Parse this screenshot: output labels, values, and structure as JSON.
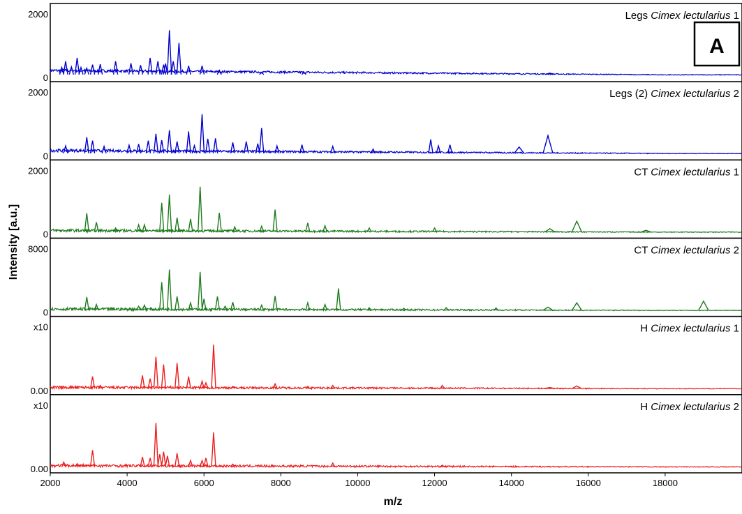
{
  "badge": "A",
  "chart_data": {
    "type": "line",
    "xlabel": "m/z",
    "ylabel": "Intensity [a.u.]",
    "xlim": [
      2000,
      20000
    ],
    "x_ticks": [
      "2000",
      "4000",
      "6000",
      "8000",
      "10000",
      "12000",
      "14000",
      "16000",
      "18000"
    ],
    "x_tick_values": [
      2000,
      4000,
      6000,
      8000,
      10000,
      12000,
      14000,
      16000,
      18000
    ],
    "panels": [
      {
        "prefix": "Legs",
        "species": "Cimex lectularius",
        "suffix": "1",
        "color": "#0000cc",
        "y_top_label": "2000",
        "y_bottom_label": "0",
        "ylim": [
          0,
          2500
        ],
        "baseline": 180,
        "peaks": [
          [
            2300,
            380
          ],
          [
            2400,
            650
          ],
          [
            2550,
            400
          ],
          [
            2700,
            800
          ],
          [
            2800,
            380
          ],
          [
            2950,
            350
          ],
          [
            3100,
            500
          ],
          [
            3300,
            520
          ],
          [
            3700,
            650
          ],
          [
            4100,
            560
          ],
          [
            4350,
            480
          ],
          [
            4600,
            800
          ],
          [
            4800,
            650
          ],
          [
            4950,
            500
          ],
          [
            5000,
            550
          ],
          [
            5100,
            2000
          ],
          [
            5200,
            650
          ],
          [
            5350,
            1450
          ],
          [
            5600,
            450
          ],
          [
            5950,
            450
          ],
          [
            6400,
            250
          ],
          [
            7500,
            170
          ],
          [
            8600,
            170
          ],
          [
            15000,
            130
          ]
        ]
      },
      {
        "prefix": "Legs (2)",
        "species": "Cimex lectularius",
        "suffix": "2",
        "color": "#0000cc",
        "y_top_label": "2000",
        "y_bottom_label": "0",
        "ylim": [
          0,
          2500
        ],
        "baseline": 120,
        "peaks": [
          [
            2400,
            370
          ],
          [
            2950,
            750
          ],
          [
            3100,
            600
          ],
          [
            3400,
            350
          ],
          [
            4050,
            400
          ],
          [
            4300,
            450
          ],
          [
            4550,
            600
          ],
          [
            4750,
            900
          ],
          [
            4900,
            620
          ],
          [
            5100,
            1050
          ],
          [
            5300,
            560
          ],
          [
            5600,
            1000
          ],
          [
            5750,
            380
          ],
          [
            5950,
            1750
          ],
          [
            6100,
            680
          ],
          [
            6300,
            700
          ],
          [
            6750,
            520
          ],
          [
            7100,
            560
          ],
          [
            7400,
            470
          ],
          [
            7500,
            1150
          ],
          [
            7900,
            370
          ],
          [
            8550,
            420
          ],
          [
            9350,
            350
          ],
          [
            10400,
            230
          ],
          [
            11900,
            650
          ],
          [
            12100,
            370
          ],
          [
            12400,
            420
          ],
          [
            14200,
            320
          ],
          [
            14950,
            820
          ]
        ]
      },
      {
        "prefix": "CT",
        "species": "Cimex lectularius",
        "suffix": "1",
        "color": "#1c7a1c",
        "y_top_label": "2000",
        "y_bottom_label": "0",
        "ylim": [
          0,
          2500
        ],
        "baseline": 60,
        "peaks": [
          [
            2950,
            850
          ],
          [
            3200,
            450
          ],
          [
            3700,
            200
          ],
          [
            4300,
            340
          ],
          [
            4450,
            340
          ],
          [
            4900,
            1300
          ],
          [
            5100,
            1650
          ],
          [
            5300,
            650
          ],
          [
            5650,
            600
          ],
          [
            5900,
            2000
          ],
          [
            6400,
            860
          ],
          [
            6800,
            250
          ],
          [
            7500,
            280
          ],
          [
            7850,
            1000
          ],
          [
            8700,
            420
          ],
          [
            9150,
            300
          ],
          [
            10300,
            200
          ],
          [
            12000,
            200
          ],
          [
            15000,
            170
          ],
          [
            15700,
            500
          ],
          [
            17500,
            100
          ]
        ]
      },
      {
        "prefix": "CT",
        "species": "Cimex lectularius",
        "suffix": "2",
        "color": "#1c7a1c",
        "y_top_label": "8000",
        "y_bottom_label": "0",
        "ylim": [
          0,
          10000
        ],
        "baseline": 200,
        "peaks": [
          [
            2950,
            2400
          ],
          [
            3200,
            1100
          ],
          [
            4300,
            800
          ],
          [
            4450,
            1000
          ],
          [
            4900,
            5000
          ],
          [
            5100,
            7200
          ],
          [
            5300,
            2500
          ],
          [
            5650,
            1400
          ],
          [
            5900,
            6800
          ],
          [
            6000,
            2100
          ],
          [
            6350,
            2500
          ],
          [
            6550,
            800
          ],
          [
            6750,
            1500
          ],
          [
            7500,
            1000
          ],
          [
            7850,
            2600
          ],
          [
            8700,
            1400
          ],
          [
            9150,
            1100
          ],
          [
            9500,
            3900
          ],
          [
            10300,
            550
          ],
          [
            11200,
            450
          ],
          [
            12300,
            550
          ],
          [
            13600,
            500
          ],
          [
            14950,
            650
          ],
          [
            15700,
            1400
          ],
          [
            19000,
            1700
          ]
        ]
      },
      {
        "prefix": "H",
        "species": "Cimex lectularius",
        "suffix": "1",
        "color": "#ee1c1c",
        "y_top_label": "x10",
        "y_bottom_label": "0.00",
        "ylim": [
          0,
          1.1
        ],
        "baseline": 0.02,
        "peaks": [
          [
            2300,
            0.05
          ],
          [
            2700,
            0.05
          ],
          [
            3100,
            0.24
          ],
          [
            3300,
            0.07
          ],
          [
            4400,
            0.26
          ],
          [
            4600,
            0.2
          ],
          [
            4750,
            0.62
          ],
          [
            4950,
            0.47
          ],
          [
            5300,
            0.5
          ],
          [
            5600,
            0.24
          ],
          [
            5950,
            0.15
          ],
          [
            6050,
            0.12
          ],
          [
            6250,
            0.85
          ],
          [
            6750,
            0.05
          ],
          [
            7850,
            0.1
          ],
          [
            8700,
            0.05
          ],
          [
            9350,
            0.07
          ],
          [
            10300,
            0.03
          ],
          [
            11900,
            0.03
          ],
          [
            12200,
            0.07
          ],
          [
            15000,
            0.03
          ],
          [
            15700,
            0.06
          ]
        ]
      },
      {
        "prefix": "H",
        "species": "Cimex lectularius",
        "suffix": "2",
        "color": "#ee1c1c",
        "y_top_label": "x10",
        "y_bottom_label": "0.00",
        "ylim": [
          0,
          1.1
        ],
        "baseline": 0.02,
        "peaks": [
          [
            2350,
            0.1
          ],
          [
            2700,
            0.07
          ],
          [
            3100,
            0.33
          ],
          [
            4400,
            0.2
          ],
          [
            4600,
            0.18
          ],
          [
            4750,
            0.85
          ],
          [
            4850,
            0.25
          ],
          [
            4950,
            0.3
          ],
          [
            5050,
            0.22
          ],
          [
            5300,
            0.27
          ],
          [
            5650,
            0.13
          ],
          [
            5950,
            0.13
          ],
          [
            6050,
            0.18
          ],
          [
            6250,
            0.67
          ],
          [
            6750,
            0.06
          ],
          [
            9350,
            0.08
          ],
          [
            12200,
            0.04
          ]
        ]
      }
    ]
  }
}
